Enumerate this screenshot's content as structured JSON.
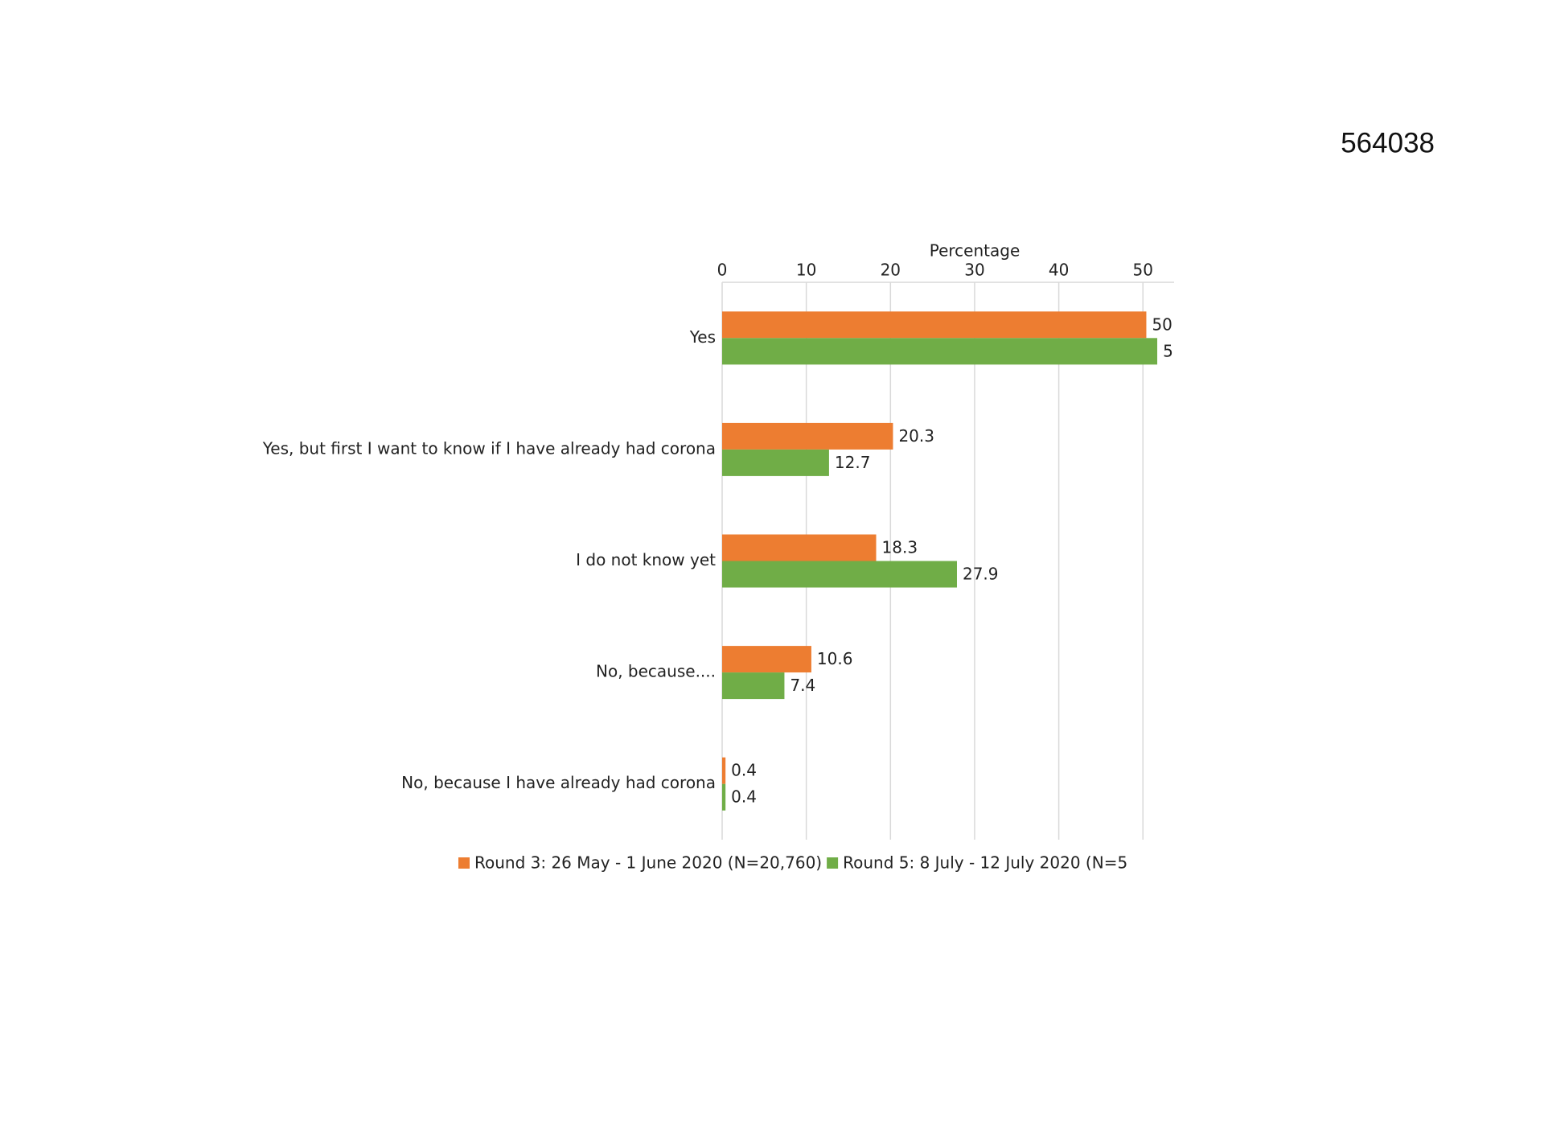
{
  "figure_id": "564038",
  "chart_data": {
    "type": "barh",
    "x_label": "Percentage",
    "categories": [
      "Yes",
      "Yes, but first I want to know if I have already had corona",
      "I do not know yet",
      "No, because....",
      "No, because I have already had corona"
    ],
    "series": [
      {
        "name": "Round 3: 26 May - 1 June 2020 (N=20,760)",
        "color": "#ed7d31",
        "values": [
          50.4,
          20.3,
          18.3,
          10.6,
          0.4
        ]
      },
      {
        "name": "Round 5: 8 July - 12 July 2020 (N=5",
        "color": "#70ad47",
        "values": [
          51.7,
          12.7,
          27.9,
          7.4,
          0.4
        ]
      }
    ],
    "xlim": [
      0,
      53.7
    ],
    "xticks": [
      0,
      10,
      20,
      30,
      40,
      50
    ],
    "grid": true,
    "legend": "bottom"
  }
}
